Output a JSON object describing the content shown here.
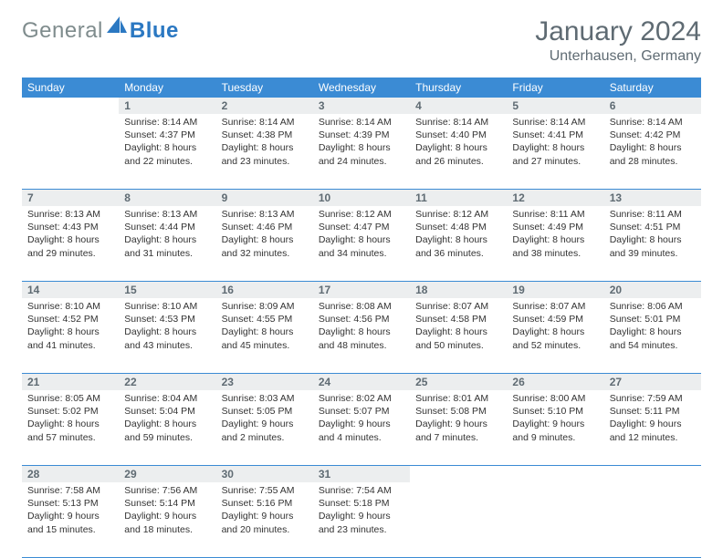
{
  "brand": {
    "first": "General",
    "second": "Blue"
  },
  "title": "January 2024",
  "location": "Unterhausen, Germany",
  "colors": {
    "header_bg": "#3b8bd4",
    "header_text": "#ffffff",
    "daynum_bg": "#eceeef",
    "daynum_text": "#5f6b73",
    "rule": "#3b8bd4",
    "title_text": "#5f6b73",
    "body_text": "#333333",
    "logo_gray": "#7f8c8d",
    "logo_blue": "#2b78c2"
  },
  "weekdays": [
    "Sunday",
    "Monday",
    "Tuesday",
    "Wednesday",
    "Thursday",
    "Friday",
    "Saturday"
  ],
  "weeks": [
    [
      null,
      {
        "n": "1",
        "sr": "8:14 AM",
        "ss": "4:37 PM",
        "dl": "8 hours and 22 minutes."
      },
      {
        "n": "2",
        "sr": "8:14 AM",
        "ss": "4:38 PM",
        "dl": "8 hours and 23 minutes."
      },
      {
        "n": "3",
        "sr": "8:14 AM",
        "ss": "4:39 PM",
        "dl": "8 hours and 24 minutes."
      },
      {
        "n": "4",
        "sr": "8:14 AM",
        "ss": "4:40 PM",
        "dl": "8 hours and 26 minutes."
      },
      {
        "n": "5",
        "sr": "8:14 AM",
        "ss": "4:41 PM",
        "dl": "8 hours and 27 minutes."
      },
      {
        "n": "6",
        "sr": "8:14 AM",
        "ss": "4:42 PM",
        "dl": "8 hours and 28 minutes."
      }
    ],
    [
      {
        "n": "7",
        "sr": "8:13 AM",
        "ss": "4:43 PM",
        "dl": "8 hours and 29 minutes."
      },
      {
        "n": "8",
        "sr": "8:13 AM",
        "ss": "4:44 PM",
        "dl": "8 hours and 31 minutes."
      },
      {
        "n": "9",
        "sr": "8:13 AM",
        "ss": "4:46 PM",
        "dl": "8 hours and 32 minutes."
      },
      {
        "n": "10",
        "sr": "8:12 AM",
        "ss": "4:47 PM",
        "dl": "8 hours and 34 minutes."
      },
      {
        "n": "11",
        "sr": "8:12 AM",
        "ss": "4:48 PM",
        "dl": "8 hours and 36 minutes."
      },
      {
        "n": "12",
        "sr": "8:11 AM",
        "ss": "4:49 PM",
        "dl": "8 hours and 38 minutes."
      },
      {
        "n": "13",
        "sr": "8:11 AM",
        "ss": "4:51 PM",
        "dl": "8 hours and 39 minutes."
      }
    ],
    [
      {
        "n": "14",
        "sr": "8:10 AM",
        "ss": "4:52 PM",
        "dl": "8 hours and 41 minutes."
      },
      {
        "n": "15",
        "sr": "8:10 AM",
        "ss": "4:53 PM",
        "dl": "8 hours and 43 minutes."
      },
      {
        "n": "16",
        "sr": "8:09 AM",
        "ss": "4:55 PM",
        "dl": "8 hours and 45 minutes."
      },
      {
        "n": "17",
        "sr": "8:08 AM",
        "ss": "4:56 PM",
        "dl": "8 hours and 48 minutes."
      },
      {
        "n": "18",
        "sr": "8:07 AM",
        "ss": "4:58 PM",
        "dl": "8 hours and 50 minutes."
      },
      {
        "n": "19",
        "sr": "8:07 AM",
        "ss": "4:59 PM",
        "dl": "8 hours and 52 minutes."
      },
      {
        "n": "20",
        "sr": "8:06 AM",
        "ss": "5:01 PM",
        "dl": "8 hours and 54 minutes."
      }
    ],
    [
      {
        "n": "21",
        "sr": "8:05 AM",
        "ss": "5:02 PM",
        "dl": "8 hours and 57 minutes."
      },
      {
        "n": "22",
        "sr": "8:04 AM",
        "ss": "5:04 PM",
        "dl": "8 hours and 59 minutes."
      },
      {
        "n": "23",
        "sr": "8:03 AM",
        "ss": "5:05 PM",
        "dl": "9 hours and 2 minutes."
      },
      {
        "n": "24",
        "sr": "8:02 AM",
        "ss": "5:07 PM",
        "dl": "9 hours and 4 minutes."
      },
      {
        "n": "25",
        "sr": "8:01 AM",
        "ss": "5:08 PM",
        "dl": "9 hours and 7 minutes."
      },
      {
        "n": "26",
        "sr": "8:00 AM",
        "ss": "5:10 PM",
        "dl": "9 hours and 9 minutes."
      },
      {
        "n": "27",
        "sr": "7:59 AM",
        "ss": "5:11 PM",
        "dl": "9 hours and 12 minutes."
      }
    ],
    [
      {
        "n": "28",
        "sr": "7:58 AM",
        "ss": "5:13 PM",
        "dl": "9 hours and 15 minutes."
      },
      {
        "n": "29",
        "sr": "7:56 AM",
        "ss": "5:14 PM",
        "dl": "9 hours and 18 minutes."
      },
      {
        "n": "30",
        "sr": "7:55 AM",
        "ss": "5:16 PM",
        "dl": "9 hours and 20 minutes."
      },
      {
        "n": "31",
        "sr": "7:54 AM",
        "ss": "5:18 PM",
        "dl": "9 hours and 23 minutes."
      },
      null,
      null,
      null
    ]
  ],
  "labels": {
    "sunrise": "Sunrise: ",
    "sunset": "Sunset: ",
    "daylight": "Daylight: "
  }
}
